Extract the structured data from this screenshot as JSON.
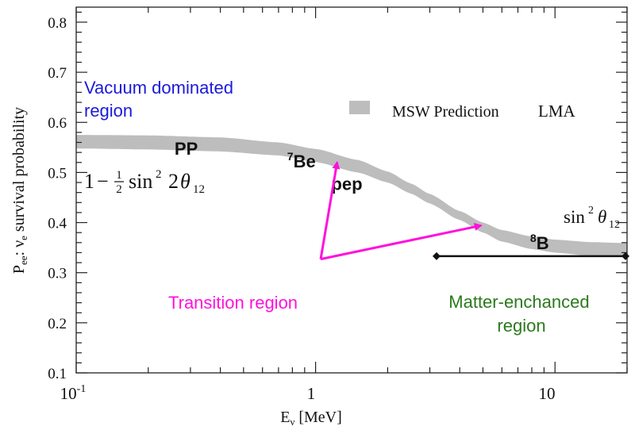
{
  "chart_data": {
    "type": "area",
    "title": "",
    "xlabel": "E",
    "xlabel_sub": "ν",
    "xlabel_unit": "[MeV]",
    "ylabel_parts": {
      "p": "P",
      "p_sub": "ee",
      "colon": ":",
      "nu": "ν",
      "nu_sub": "e",
      "rest": "survival probability"
    },
    "xscale": "log",
    "xlim": [
      0.1,
      20
    ],
    "ylim": [
      0.1,
      0.83
    ],
    "x_ticks": [
      {
        "value": 0.1,
        "base": "10",
        "exp": "-1"
      },
      {
        "value": 1,
        "base": "1",
        "exp": ""
      },
      {
        "value": 10,
        "base": "10",
        "exp": ""
      }
    ],
    "y_ticks": [
      {
        "value": 0.1,
        "label": "0.1"
      },
      {
        "value": 0.2,
        "label": "0.2"
      },
      {
        "value": 0.3,
        "label": "0.3"
      },
      {
        "value": 0.4,
        "label": "0.4"
      },
      {
        "value": 0.5,
        "label": "0.5"
      },
      {
        "value": 0.6,
        "label": "0.6"
      },
      {
        "value": 0.7,
        "label": "0.7"
      },
      {
        "value": 0.8,
        "label": "0.8"
      }
    ],
    "series": [
      {
        "name": "MSW Prediction",
        "color": "#b9b9b9",
        "x": [
          0.1,
          0.2,
          0.4,
          0.7,
          1.0,
          1.5,
          2.0,
          2.5,
          3.0,
          4.0,
          5.0,
          6.0,
          8.0,
          10.0,
          14.0,
          20.0
        ],
        "upper": [
          0.575,
          0.574,
          0.57,
          0.56,
          0.547,
          0.525,
          0.502,
          0.478,
          0.457,
          0.423,
          0.4,
          0.385,
          0.372,
          0.366,
          0.361,
          0.359
        ],
        "lower": [
          0.548,
          0.546,
          0.542,
          0.534,
          0.521,
          0.5,
          0.48,
          0.458,
          0.438,
          0.405,
          0.38,
          0.362,
          0.347,
          0.34,
          0.334,
          0.331
        ]
      }
    ],
    "legend": {
      "label": "MSW Prediction",
      "tag": "LMA",
      "position": "top-right"
    },
    "annotations": {
      "vacuum": {
        "text_line1": "Vacuum dominated",
        "text_line2": "region",
        "color": "#1a1adc"
      },
      "formula_vacuum": {
        "one": "1",
        "minus": "−",
        "frac_num": "1",
        "frac_den": "2",
        "sin": "sin",
        "sq": "2",
        "angle_coef": "2",
        "theta": "θ",
        "theta_sub": "12"
      },
      "formula_matter": {
        "sin": "sin",
        "sq": "2",
        "theta": "θ",
        "theta_sub": "12"
      },
      "pp": {
        "text": "PP",
        "x": 0.3,
        "y": 0.548
      },
      "be7": {
        "sup": "7",
        "text": "Be",
        "x": 0.9,
        "y": 0.523
      },
      "pep": {
        "text": "pep",
        "x": 1.44,
        "y": 0.478
      },
      "b8": {
        "sup": "8",
        "text": "B",
        "x": 8.5,
        "y": 0.36
      },
      "transition": {
        "text": "Transition region",
        "color": "#ff10dc",
        "apex": [
          1.05,
          0.327
        ],
        "targets": [
          [
            1.23,
            0.52
          ],
          [
            4.9,
            0.394
          ]
        ]
      },
      "matter": {
        "text_line1": "Matter-enchanced",
        "text_line2": "region",
        "color": "#2a7a1c",
        "range": [
          3.2,
          20
        ],
        "y": 0.333
      }
    }
  }
}
